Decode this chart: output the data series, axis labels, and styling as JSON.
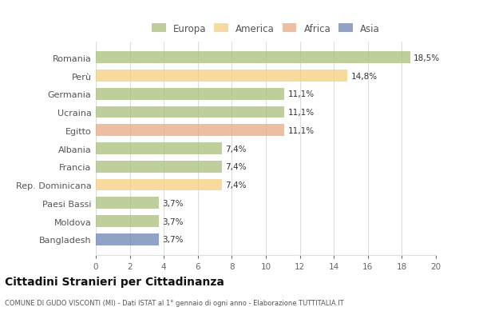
{
  "countries": [
    "Romania",
    "Perù",
    "Germania",
    "Ucraina",
    "Egitto",
    "Albania",
    "Francia",
    "Rep. Dominicana",
    "Paesi Bassi",
    "Moldova",
    "Bangladesh"
  ],
  "values": [
    18.5,
    14.8,
    11.1,
    11.1,
    11.1,
    7.4,
    7.4,
    7.4,
    3.7,
    3.7,
    3.7
  ],
  "labels": [
    "18,5%",
    "14,8%",
    "11,1%",
    "11,1%",
    "11,1%",
    "7,4%",
    "7,4%",
    "7,4%",
    "3,7%",
    "3,7%",
    "3,7%"
  ],
  "colors": [
    "#a8c07a",
    "#f5ce7e",
    "#a8c07a",
    "#a8c07a",
    "#e8a882",
    "#a8c07a",
    "#a8c07a",
    "#f5ce7e",
    "#a8c07a",
    "#a8c07a",
    "#6b85b5"
  ],
  "legend": [
    "Europa",
    "America",
    "Africa",
    "Asia"
  ],
  "legend_colors": [
    "#a8c07a",
    "#f5ce7e",
    "#e8a882",
    "#6b85b5"
  ],
  "title": "Cittadini Stranieri per Cittadinanza",
  "subtitle": "COMUNE DI GUDO VISCONTI (MI) - Dati ISTAT al 1° gennaio di ogni anno - Elaborazione TUTTITALIA.IT",
  "xlim": [
    0,
    20
  ],
  "xticks": [
    0,
    2,
    4,
    6,
    8,
    10,
    12,
    14,
    16,
    18,
    20
  ],
  "background_color": "#ffffff",
  "grid_color": "#dddddd",
  "bar_alpha": 0.75
}
